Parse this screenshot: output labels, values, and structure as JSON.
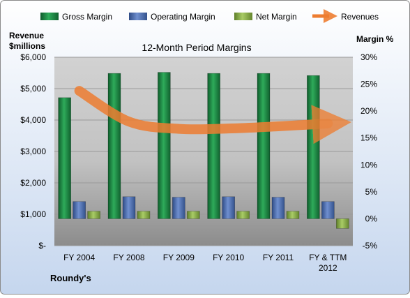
{
  "chart_data": {
    "type": "bar",
    "title": "12-Month Period Margins",
    "company": "Roundy's",
    "left_axis_title": [
      "Revenue",
      "$millions"
    ],
    "right_axis_title": "Margin %",
    "categories": [
      "FY 2004",
      "FY 2008",
      "FY 2009",
      "FY 2010",
      "FY 2011",
      "FY & TTM 2012"
    ],
    "left_ticks": [
      "$-",
      "$1,000",
      "$2,000",
      "$3,000",
      "$4,000",
      "$5,000",
      "$6,000"
    ],
    "right_ticks": [
      "-5%",
      "0%",
      "5%",
      "10%",
      "15%",
      "20%",
      "25%",
      "30%"
    ],
    "left_axis": {
      "min": 0,
      "max": 6000
    },
    "right_axis": {
      "min": -5,
      "max": 30
    },
    "legend_position": "top",
    "series": [
      {
        "name": "Gross Margin",
        "type": "bar",
        "axis": "right",
        "color": "#1f8a46",
        "values": [
          22.5,
          27.0,
          27.2,
          27.0,
          27.0,
          26.6
        ]
      },
      {
        "name": "Operating Margin",
        "type": "bar",
        "axis": "right",
        "color": "#4f6fb0",
        "values": [
          3.2,
          4.1,
          4.0,
          4.1,
          4.0,
          3.2
        ]
      },
      {
        "name": "Net Margin",
        "type": "bar",
        "axis": "right",
        "color": "#8bb04a",
        "values": [
          1.4,
          1.4,
          1.4,
          1.4,
          1.4,
          -1.8
        ]
      },
      {
        "name": "Revenues",
        "type": "line",
        "axis": "left",
        "color": "#ed7d31",
        "values": [
          4930,
          3950,
          3720,
          3730,
          3800,
          3890
        ]
      }
    ]
  }
}
